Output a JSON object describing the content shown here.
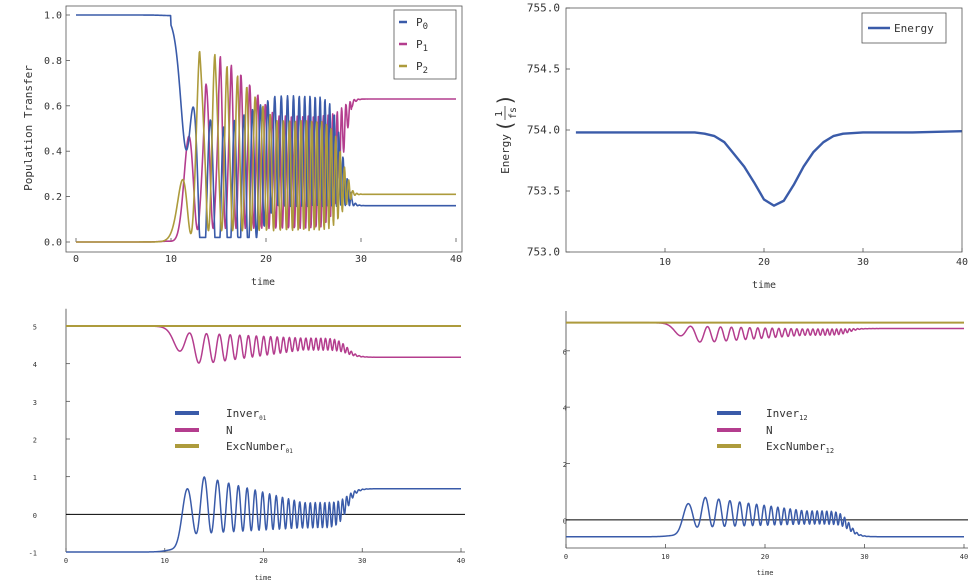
{
  "colors": {
    "blue": "#3a5ba9",
    "magenta": "#b43d8e",
    "olive": "#ad9b3c",
    "axis": "#444444",
    "zero_line": "#000000"
  },
  "chart_data": [
    {
      "type": "line",
      "title": "",
      "xlabel": "time",
      "ylabel": "Population Transfer",
      "xlim": [
        0,
        40
      ],
      "ylim": [
        0,
        1
      ],
      "x_ticks": [
        "0",
        "10",
        "20",
        "30",
        "40"
      ],
      "y_ticks": [
        "0.0",
        "0.2",
        "0.4",
        "0.6",
        "0.8",
        "1.0"
      ],
      "legend": {
        "position": "top-right",
        "entries": [
          [
            "P",
            "0"
          ],
          [
            "P",
            "1"
          ],
          [
            "P",
            "2"
          ]
        ]
      },
      "series": [
        {
          "name": "P0",
          "color": "blue",
          "model": "p0"
        },
        {
          "name": "P1",
          "color": "magenta",
          "model": "p1"
        },
        {
          "name": "P2",
          "color": "olive",
          "model": "p2"
        }
      ],
      "final_values": {
        "P0": 0.16,
        "P1": 0.63,
        "P2": 0.21
      }
    },
    {
      "type": "line",
      "title": "",
      "xlabel": "time",
      "ylabel_main": "Energy",
      "ylabel_num": "1",
      "ylabel_den": "fs",
      "xlim": [
        0,
        40
      ],
      "ylim": [
        753.0,
        755.0
      ],
      "x_ticks": [
        "10",
        "20",
        "30",
        "40"
      ],
      "y_ticks": [
        "753.0",
        "753.5",
        "754.0",
        "754.5",
        "755.0"
      ],
      "legend": {
        "position": "top-right",
        "entries": [
          "Energy"
        ]
      },
      "series": [
        {
          "name": "Energy",
          "color": "blue",
          "x": [
            1,
            13,
            14,
            15,
            16,
            17,
            18,
            19,
            20,
            21,
            22,
            23,
            24,
            25,
            26,
            27,
            28,
            30,
            35,
            40
          ],
          "y": [
            753.98,
            753.98,
            753.97,
            753.95,
            753.9,
            753.8,
            753.7,
            753.57,
            753.43,
            753.38,
            753.42,
            753.55,
            753.7,
            753.82,
            753.9,
            753.95,
            753.97,
            753.98,
            753.98,
            753.99
          ]
        }
      ]
    },
    {
      "type": "line",
      "title": "",
      "xlabel": "time",
      "xlim": [
        0,
        40
      ],
      "ylim": [
        -1,
        5.3
      ],
      "x_ticks": [
        "0",
        "10",
        "20",
        "30",
        "40"
      ],
      "y_ticks": [
        "-1",
        "0",
        "1",
        "2",
        "3",
        "4",
        "5"
      ],
      "legend": {
        "position": "center",
        "entries": [
          [
            "Inver",
            "01"
          ],
          [
            "N",
            ""
          ],
          [
            "ExcNumber",
            "01"
          ]
        ]
      },
      "series": [
        {
          "name": "Inver01",
          "color": "blue",
          "model": "inv",
          "base": -1,
          "amp": 2,
          "final": 0.68
        },
        {
          "name": "N",
          "color": "magenta",
          "model": "n",
          "base": 5,
          "amp": 1,
          "final": 4.17
        },
        {
          "name": "ExcNumber01",
          "color": "olive",
          "model": "const",
          "value": 5
        }
      ]
    },
    {
      "type": "line",
      "title": "",
      "xlabel": "time",
      "xlim": [
        0,
        40
      ],
      "ylim": [
        -1,
        7.2
      ],
      "x_ticks": [
        "0",
        "10",
        "20",
        "30",
        "40"
      ],
      "y_ticks": [
        "0",
        "2",
        "4",
        "6"
      ],
      "legend": {
        "position": "center",
        "entries": [
          [
            "Inver",
            "12"
          ],
          [
            "N",
            ""
          ],
          [
            "ExcNumber",
            "12"
          ]
        ]
      },
      "series": [
        {
          "name": "Inver12",
          "color": "blue",
          "model": "inv",
          "base": -0.6,
          "amp": 1.4,
          "final": -0.6
        },
        {
          "name": "N",
          "color": "magenta",
          "model": "n",
          "base": 7,
          "amp": 0.7,
          "final": 6.79
        },
        {
          "name": "ExcNumber12",
          "color": "olive",
          "model": "const",
          "value": 7
        }
      ]
    }
  ]
}
